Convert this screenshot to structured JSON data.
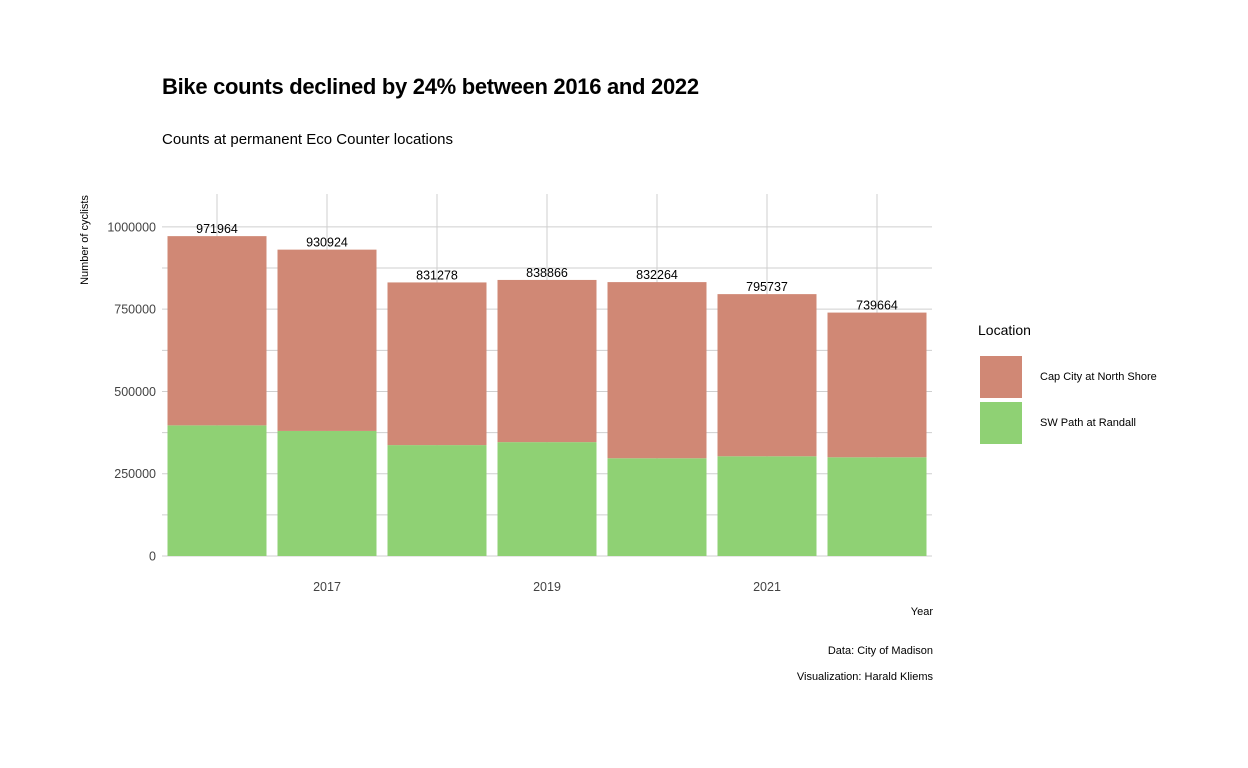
{
  "chart_data": {
    "type": "bar",
    "stacked": true,
    "title": "Bike counts declined by 24% between 2016 and 2022",
    "subtitle": "Counts at permanent Eco Counter locations",
    "xlabel": "Year",
    "ylabel": "Number of cyclists",
    "categories": [
      2016,
      2017,
      2018,
      2019,
      2020,
      2021,
      2022
    ],
    "x_tick_labels": [
      "2017",
      "2019",
      "2021"
    ],
    "x_tick_values": [
      2017,
      2019,
      2021
    ],
    "y_tick_labels": [
      "0",
      "250000",
      "500000",
      "750000",
      "1000000"
    ],
    "y_tick_values": [
      0,
      250000,
      500000,
      750000,
      1000000
    ],
    "ylim": [
      0,
      1100000
    ],
    "xlim": [
      2015.5,
      2022.5
    ],
    "grid": true,
    "legend_position": "right",
    "legend_title": "Location",
    "series": [
      {
        "name": "SW Path at Randall",
        "color": "#8fd174",
        "values": [
          397000,
          380000,
          337000,
          346000,
          297000,
          303000,
          300000
        ]
      },
      {
        "name": "Cap City at North Shore",
        "color": "#d08875",
        "values": [
          574964,
          550924,
          494278,
          492866,
          535264,
          492737,
          439664
        ]
      }
    ],
    "totals": [
      971964,
      930924,
      831278,
      838866,
      832264,
      795737,
      739664
    ],
    "total_labels": [
      "971964",
      "930924",
      "831278",
      "838866",
      "832264",
      "795737",
      "739664"
    ]
  },
  "legend": {
    "title": "Location",
    "items": [
      {
        "label": "Cap City at North Shore",
        "color": "#d08875"
      },
      {
        "label": "SW Path at Randall",
        "color": "#8fd174"
      }
    ]
  },
  "caption": {
    "line1": "Data: City of Madison",
    "line2": "Visualization: Harald Kliems"
  }
}
